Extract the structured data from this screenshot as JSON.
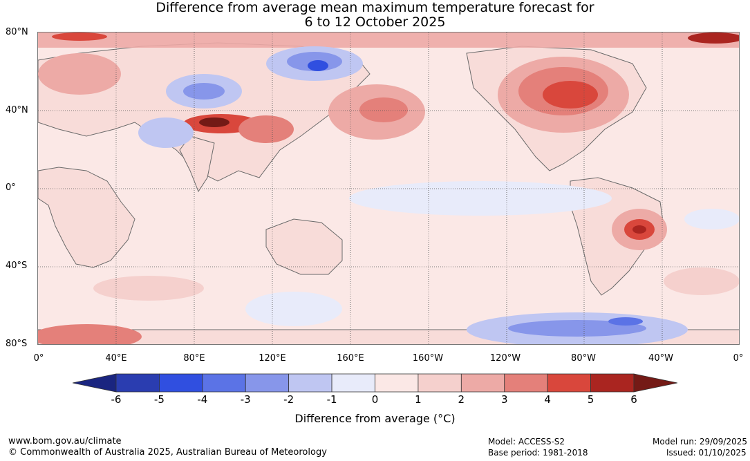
{
  "title": {
    "line1": "Difference from average mean maximum temperature forecast for",
    "line2": "6 to 12 October 2025"
  },
  "map": {
    "lat_labels": [
      "80°N",
      "40°N",
      "0°",
      "40°S",
      "80°S"
    ],
    "lon_labels": [
      "0°",
      "40°E",
      "80°E",
      "120°E",
      "160°E",
      "160°W",
      "120°W",
      "80°W",
      "40°W",
      "0°"
    ],
    "anomaly_regions": [
      {
        "name": "central-north-america",
        "anomaly": 5
      },
      {
        "name": "tibetan-plateau-west",
        "anomaly": 6
      },
      {
        "name": "south-america-southeast",
        "anomaly": 5
      },
      {
        "name": "north-pacific",
        "anomaly": 3
      },
      {
        "name": "eastern-siberia",
        "anomaly": -4
      },
      {
        "name": "central-asia",
        "anomaly": -3
      },
      {
        "name": "southern-ocean-pacific",
        "anomaly": -4
      }
    ]
  },
  "legend": {
    "label": "Difference from average (°C)",
    "ticks": [
      "-6",
      "-5",
      "-4",
      "-3",
      "-2",
      "-1",
      "0",
      "1",
      "2",
      "3",
      "4",
      "5",
      "6"
    ],
    "colors": [
      "#1a2580",
      "#2a3db0",
      "#304fe0",
      "#5b73e6",
      "#8796ea",
      "#bfc6f2",
      "#e8ebfa",
      "#fbe8e6",
      "#f5d0cd",
      "#edaaa6",
      "#e4807a",
      "#d9473c",
      "#aa2520",
      "#741a16"
    ]
  },
  "footer": {
    "url": "www.bom.gov.au/climate",
    "copyright": "© Commonwealth of Australia 2025, Australian Bureau of Meteorology",
    "model": "Model: ACCESS-S2",
    "base_period": "Base period: 1981-2018",
    "model_run": "Model run: 29/09/2025",
    "issued": "Issued: 01/10/2025"
  }
}
